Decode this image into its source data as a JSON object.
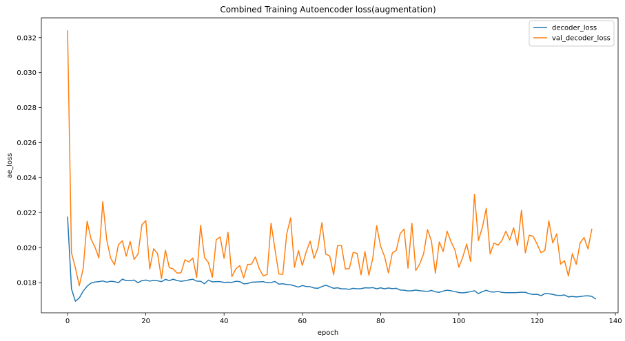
{
  "chart_data": {
    "type": "line",
    "title": "Combined Training Autoencoder loss(augmentation)",
    "xlabel": "epoch",
    "ylabel": "ae_loss",
    "xlim": [
      -6.7,
      140.7
    ],
    "ylim": [
      0.01628,
      0.03313
    ],
    "xticks": [
      0,
      20,
      40,
      60,
      80,
      100,
      120,
      140
    ],
    "yticks": [
      0.018,
      0.02,
      0.022,
      0.024,
      0.026,
      0.028,
      0.03,
      0.032
    ],
    "ytick_labels": [
      "0.018",
      "0.020",
      "0.022",
      "0.024",
      "0.026",
      "0.028",
      "0.030",
      "0.032"
    ],
    "grid": false,
    "legend": "top-right",
    "colors": {
      "decoder_loss": "#1f77b4",
      "val_decoder_loss": "#ff7f0e"
    },
    "series": [
      {
        "name": "decoder_loss",
        "values": [
          0.02178,
          0.01765,
          0.01694,
          0.01713,
          0.01752,
          0.0178,
          0.01798,
          0.01804,
          0.01806,
          0.0181,
          0.01803,
          0.01808,
          0.01806,
          0.018,
          0.0182,
          0.01812,
          0.01812,
          0.01815,
          0.018,
          0.01812,
          0.01815,
          0.01809,
          0.01814,
          0.01811,
          0.01806,
          0.01819,
          0.01812,
          0.0182,
          0.01812,
          0.01808,
          0.01811,
          0.01816,
          0.0182,
          0.01809,
          0.01808,
          0.01794,
          0.01815,
          0.01805,
          0.01806,
          0.01806,
          0.01802,
          0.01803,
          0.01802,
          0.01808,
          0.01806,
          0.01794,
          0.01795,
          0.01803,
          0.01804,
          0.01805,
          0.01806,
          0.018,
          0.01801,
          0.01807,
          0.01792,
          0.01794,
          0.0179,
          0.01788,
          0.01782,
          0.01775,
          0.01784,
          0.01778,
          0.01777,
          0.0177,
          0.01768,
          0.01778,
          0.01786,
          0.01777,
          0.01768,
          0.01771,
          0.01765,
          0.01765,
          0.01762,
          0.01768,
          0.01765,
          0.01766,
          0.01771,
          0.0177,
          0.01772,
          0.01765,
          0.01771,
          0.01765,
          0.0177,
          0.01766,
          0.01768,
          0.01758,
          0.01757,
          0.01753,
          0.01754,
          0.01758,
          0.01754,
          0.01752,
          0.0175,
          0.01756,
          0.01748,
          0.01745,
          0.01752,
          0.01757,
          0.01754,
          0.01749,
          0.01744,
          0.01742,
          0.01745,
          0.01749,
          0.01754,
          0.01738,
          0.01749,
          0.01757,
          0.01748,
          0.01747,
          0.0175,
          0.01745,
          0.01743,
          0.01743,
          0.01743,
          0.01744,
          0.01746,
          0.01745,
          0.01737,
          0.01733,
          0.01734,
          0.01726,
          0.01738,
          0.01737,
          0.01733,
          0.01728,
          0.01727,
          0.0173,
          0.01719,
          0.01722,
          0.01719,
          0.01721,
          0.01724,
          0.01725,
          0.01722,
          0.01706
        ]
      },
      {
        "name": "val_decoder_loss",
        "values": [
          0.03242,
          0.01971,
          0.01885,
          0.01783,
          0.01882,
          0.02152,
          0.02049,
          0.02004,
          0.01941,
          0.02264,
          0.02046,
          0.01941,
          0.01902,
          0.02017,
          0.0204,
          0.01952,
          0.02036,
          0.01933,
          0.01963,
          0.02131,
          0.02155,
          0.01878,
          0.01994,
          0.01966,
          0.01824,
          0.01986,
          0.01886,
          0.01879,
          0.01855,
          0.01857,
          0.01931,
          0.01919,
          0.01941,
          0.0183,
          0.02128,
          0.01945,
          0.01915,
          0.01831,
          0.02046,
          0.02061,
          0.01939,
          0.02089,
          0.01835,
          0.01879,
          0.01898,
          0.01827,
          0.01904,
          0.01906,
          0.01947,
          0.0188,
          0.01839,
          0.01847,
          0.0214,
          0.01992,
          0.0185,
          0.01848,
          0.02078,
          0.0217,
          0.01888,
          0.01983,
          0.01899,
          0.01977,
          0.02038,
          0.01939,
          0.02001,
          0.02143,
          0.01963,
          0.01953,
          0.01845,
          0.02012,
          0.02012,
          0.01879,
          0.0188,
          0.01974,
          0.01967,
          0.01845,
          0.01978,
          0.01843,
          0.01938,
          0.02126,
          0.02008,
          0.01951,
          0.01856,
          0.0197,
          0.01985,
          0.0208,
          0.02106,
          0.01883,
          0.0214,
          0.0187,
          0.01907,
          0.01966,
          0.02103,
          0.02037,
          0.01854,
          0.02033,
          0.01978,
          0.02094,
          0.02034,
          0.01987,
          0.01888,
          0.01946,
          0.02021,
          0.01921,
          0.02305,
          0.02041,
          0.02115,
          0.02225,
          0.01964,
          0.02027,
          0.02014,
          0.02041,
          0.02094,
          0.02044,
          0.02114,
          0.02012,
          0.02214,
          0.0197,
          0.02071,
          0.02065,
          0.0202,
          0.01971,
          0.01985,
          0.02154,
          0.02027,
          0.02079,
          0.01906,
          0.01926,
          0.01838,
          0.01966,
          0.01905,
          0.02028,
          0.02058,
          0.01993,
          0.02108
        ]
      }
    ]
  }
}
